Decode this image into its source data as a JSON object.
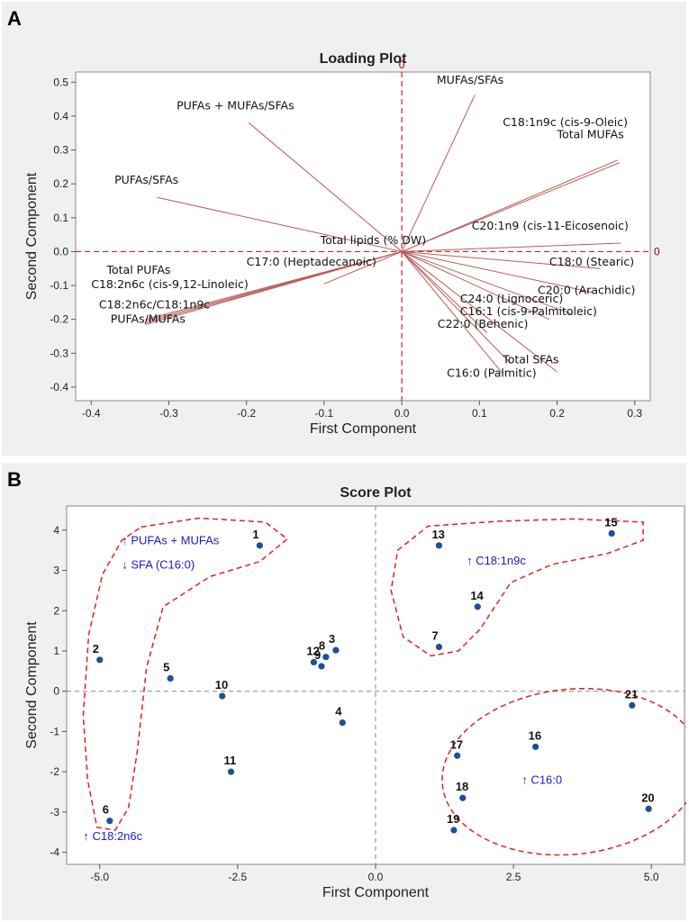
{
  "chart_data": [
    {
      "panel": "A",
      "type": "scatter",
      "title": "Loading Plot",
      "xlabel": "First Component",
      "ylabel": "Second Component",
      "xlim": [
        -0.42,
        0.32
      ],
      "ylim": [
        -0.44,
        0.53
      ],
      "xticks": [
        -0.4,
        -0.3,
        -0.2,
        -0.1,
        0.0,
        0.1,
        0.2,
        0.3
      ],
      "xtick_labels": [
        "-0.4",
        "-0.3",
        "-0.2",
        "-0.1",
        "0.0",
        "0.1",
        "0.2",
        "0.3"
      ],
      "yticks": [
        0.5,
        0.4,
        0.3,
        0.2,
        0.1,
        0.0,
        -0.1,
        -0.2,
        -0.3,
        -0.4
      ],
      "ytick_labels": [
        "0.5",
        "0.4",
        "0.3",
        "0.2",
        "0.1",
        "0.0",
        "-0.1",
        "-0.2",
        "-0.3",
        "-0.4"
      ],
      "reference_label": "0",
      "colors": {
        "line": "#b85c5c",
        "reference": "#cc2222",
        "ref_label": "#8b0000"
      },
      "vectors": [
        {
          "x": 0.094,
          "y": 0.462
        },
        {
          "x": -0.197,
          "y": 0.38
        },
        {
          "x": -0.315,
          "y": 0.16
        },
        {
          "x": 0.278,
          "y": 0.27
        },
        {
          "x": 0.28,
          "y": 0.262
        },
        {
          "x": 0.282,
          "y": 0.025
        },
        {
          "x": 0.0,
          "y": 0.003
        },
        {
          "x": -0.1,
          "y": -0.095
        },
        {
          "x": -0.33,
          "y": -0.2
        },
        {
          "x": -0.33,
          "y": -0.205
        },
        {
          "x": -0.33,
          "y": -0.21
        },
        {
          "x": -0.33,
          "y": -0.215
        },
        {
          "x": 0.255,
          "y": -0.05
        },
        {
          "x": 0.245,
          "y": -0.12
        },
        {
          "x": 0.22,
          "y": -0.185
        },
        {
          "x": 0.19,
          "y": -0.2
        },
        {
          "x": 0.11,
          "y": -0.24
        },
        {
          "x": 0.14,
          "y": -0.33
        },
        {
          "x": 0.2,
          "y": -0.355
        },
        {
          "x": 0.13,
          "y": -0.36
        }
      ],
      "labels": [
        {
          "text": "MUFAs/SFAs",
          "x": 0.045,
          "y": 0.495
        },
        {
          "text": "PUFAs + MUFAs/SFAs",
          "x": -0.29,
          "y": 0.42
        },
        {
          "text": "C18:1n9c (cis-9-Oleic)",
          "x": 0.13,
          "y": 0.37
        },
        {
          "text": "Total MUFAs",
          "x": 0.2,
          "y": 0.335
        },
        {
          "text": "PUFAs/SFAs",
          "x": -0.37,
          "y": 0.2
        },
        {
          "text": "C20:1n9 (cis-11-Eicosenoic)",
          "x": 0.09,
          "y": 0.065
        },
        {
          "text": "Total lipids (% DW)",
          "x": -0.105,
          "y": 0.022
        },
        {
          "text": "C17:0 (Heptadecanoic)",
          "x": -0.2,
          "y": -0.042
        },
        {
          "text": "C18:0 (Stearic)",
          "x": 0.19,
          "y": -0.042
        },
        {
          "text": "Total PUFAs",
          "x": -0.38,
          "y": -0.065
        },
        {
          "text": "C18:2n6c (cis-9,12-Linoleic)",
          "x": -0.4,
          "y": -0.108
        },
        {
          "text": "C20:0 (Arachidic)",
          "x": 0.175,
          "y": -0.125
        },
        {
          "text": "C24:0 (Lignoceric)",
          "x": 0.075,
          "y": -0.15
        },
        {
          "text": "C18:2n6c/C18:1n9c",
          "x": -0.39,
          "y": -0.168
        },
        {
          "text": "C16:1 (cis-9-Palmitoleic)",
          "x": 0.075,
          "y": -0.188
        },
        {
          "text": "PUFAs/MUFAs",
          "x": -0.375,
          "y": -0.21
        },
        {
          "text": "C22:0 (Behenic)",
          "x": 0.046,
          "y": -0.225
        },
        {
          "text": "Total SFAs",
          "x": 0.13,
          "y": -0.33
        },
        {
          "text": "C16:0 (Palmitic)",
          "x": 0.058,
          "y": -0.37
        }
      ]
    },
    {
      "panel": "B",
      "type": "scatter",
      "title": "Score Plot",
      "xlabel": "First Component",
      "ylabel": "Second Component",
      "xlim": [
        -5.6,
        5.6
      ],
      "ylim": [
        -4.3,
        4.6
      ],
      "xticks": [
        -5.0,
        -2.5,
        0.0,
        2.5,
        5.0
      ],
      "xtick_labels": [
        "-5.0",
        "-2.5",
        "0.0",
        "2.5",
        "5.0"
      ],
      "yticks": [
        4,
        3,
        2,
        1,
        0,
        -1,
        -2,
        -3,
        -4
      ],
      "ytick_labels": [
        "4",
        "3",
        "2",
        "1",
        "0",
        "-1",
        "-2",
        "-3",
        "-4"
      ],
      "colors": {
        "point": "#1f4e9a",
        "reference": "#888888",
        "ellipse": "#e02020",
        "annotation": "#1a1acc"
      },
      "points": [
        {
          "label": "1",
          "x": -2.1,
          "y": 3.62
        },
        {
          "label": "2",
          "x": -5.0,
          "y": 0.78
        },
        {
          "label": "3",
          "x": -0.72,
          "y": 1.02
        },
        {
          "label": "4",
          "x": -0.6,
          "y": -0.78
        },
        {
          "label": "5",
          "x": -3.72,
          "y": 0.32
        },
        {
          "label": "6",
          "x": -4.82,
          "y": -3.22
        },
        {
          "label": "7",
          "x": 1.15,
          "y": 1.1
        },
        {
          "label": "8",
          "x": -0.9,
          "y": 0.85
        },
        {
          "label": "9",
          "x": -0.98,
          "y": 0.62
        },
        {
          "label": "10",
          "x": -2.78,
          "y": -0.12
        },
        {
          "label": "11",
          "x": -2.62,
          "y": -2.0
        },
        {
          "label": "12",
          "x": -1.12,
          "y": 0.72
        },
        {
          "label": "13",
          "x": 1.15,
          "y": 3.62
        },
        {
          "label": "14",
          "x": 1.85,
          "y": 2.1
        },
        {
          "label": "15",
          "x": 4.28,
          "y": 3.92
        },
        {
          "label": "16",
          "x": 2.9,
          "y": -1.38
        },
        {
          "label": "17",
          "x": 1.48,
          "y": -1.6
        },
        {
          "label": "18",
          "x": 1.58,
          "y": -2.65
        },
        {
          "label": "19",
          "x": 1.42,
          "y": -3.45
        },
        {
          "label": "20",
          "x": 4.95,
          "y": -2.92
        },
        {
          "label": "21",
          "x": 4.65,
          "y": -0.35
        }
      ],
      "annotations": [
        {
          "text": "↑ PUFAs + MUFAs",
          "x": -4.6,
          "y": 3.65
        },
        {
          "text": "↓ SFA (C16:0)",
          "x": -4.6,
          "y": 3.05
        },
        {
          "text": "↑ C18:1n9c",
          "x": 1.65,
          "y": 3.15
        },
        {
          "text": "↑ C16:0",
          "x": 2.65,
          "y": -2.3
        },
        {
          "text": "↑ C18:2n6c",
          "x": -5.3,
          "y": -3.7
        }
      ]
    }
  ],
  "panels": {
    "a_letter": "A",
    "b_letter": "B"
  }
}
